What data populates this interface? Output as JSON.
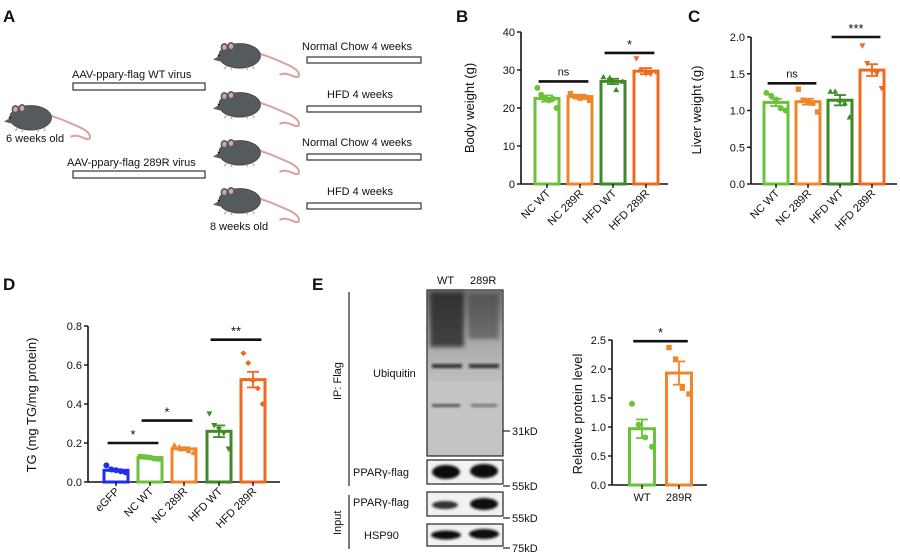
{
  "figure": {
    "panels": {
      "A": {
        "letter": "A",
        "start_label": "6 weeks old",
        "end_label": "8 weeks old",
        "virus_wt": "AAV-ppary-flag WT virus",
        "virus_289r": "AAV-ppary-flag 289R virus",
        "diets": [
          "Normal Chow 4 weeks",
          "HFD 4 weeks",
          "Normal Chow 4 weeks",
          "HFD 4 weeks"
        ]
      },
      "B": {
        "letter": "B"
      },
      "C": {
        "letter": "C"
      },
      "D": {
        "letter": "D"
      },
      "E": {
        "letter": "E",
        "lane_labels": [
          "WT",
          "289R"
        ],
        "ip_label": "IP: Flag",
        "input_label": "Input",
        "blot_labels": [
          "Ubiquitin",
          "PPARγ-flag",
          "PPARγ-flag",
          "HSP90"
        ],
        "markers": [
          "31kD",
          "55kD",
          "55kD",
          "75kD"
        ]
      }
    },
    "colors": {
      "nc_wt": "#6cc23a",
      "nc_289r": "#f0862a",
      "hfd_wt": "#3f8a26",
      "hfd_289r": "#ef6a1e",
      "egfp": "#1f2df0",
      "axis": "#111111"
    }
  },
  "chart_data": [
    {
      "id": "B",
      "type": "bar",
      "title": "",
      "xlabel": "",
      "ylabel": "Body weight (g)",
      "ylim": [
        0,
        40
      ],
      "yticks": [
        0,
        10,
        20,
        30,
        40
      ],
      "categories": [
        "NC WT",
        "NC 289R",
        "HFD WT",
        "HFD 289R"
      ],
      "values": [
        22.5,
        23.0,
        27.0,
        29.7
      ],
      "sem": [
        0.8,
        0.5,
        0.7,
        0.8
      ],
      "points": [
        [
          25.3,
          23.5,
          22.6,
          22.0,
          22.4,
          20.0
        ],
        [
          23.8,
          23.0,
          22.6,
          22.8,
          22.0
        ],
        [
          28.2,
          28.0,
          24.8,
          27.0
        ],
        [
          33.0,
          30.0,
          29.0,
          28.9,
          29.5
        ]
      ],
      "markers": [
        "circle",
        "square",
        "triangle-up",
        "triangle-down"
      ],
      "significance": [
        {
          "from": 0,
          "to": 1,
          "label": "ns",
          "y": 27
        },
        {
          "from": 2,
          "to": 3,
          "label": "*",
          "y": 34.5
        }
      ],
      "grid": false
    },
    {
      "id": "C",
      "type": "bar",
      "title": "",
      "xlabel": "",
      "ylabel": "Liver weight (g)",
      "ylim": [
        0,
        2.0
      ],
      "yticks": [
        "0.0",
        "0.5",
        "1.0",
        "1.5",
        "2.0"
      ],
      "categories": [
        "NC WT",
        "NC 289R",
        "HFD WT",
        "HFD 289R"
      ],
      "values": [
        1.11,
        1.12,
        1.14,
        1.55
      ],
      "sem": [
        0.05,
        0.04,
        0.07,
        0.08
      ],
      "points": [
        [
          1.24,
          1.2,
          1.15,
          1.03,
          1.0
        ],
        [
          1.29,
          1.14,
          1.12,
          1.1,
          0.98
        ],
        [
          1.26,
          1.26,
          1.14,
          1.1,
          0.91
        ],
        [
          1.88,
          1.64,
          1.53,
          1.5,
          1.3
        ]
      ],
      "markers": [
        "circle",
        "square",
        "triangle-up",
        "triangle-down"
      ],
      "significance": [
        {
          "from": 0,
          "to": 1,
          "label": "ns",
          "y": 1.37
        },
        {
          "from": 2,
          "to": 3,
          "label": "***",
          "y": 2.0
        }
      ],
      "grid": false
    },
    {
      "id": "D",
      "type": "bar",
      "title": "",
      "xlabel": "",
      "ylabel": "TG (mg TG/mg protein)",
      "ylim": [
        0,
        0.8
      ],
      "yticks": [
        "0.0",
        "0.2",
        "0.4",
        "0.6",
        "0.8"
      ],
      "categories": [
        "eGFP",
        "NC WT",
        "NC 289R",
        "HFD WT",
        "HFD 289R"
      ],
      "values": [
        0.06,
        0.125,
        0.17,
        0.26,
        0.525
      ],
      "sem": [
        0.005,
        0.004,
        0.008,
        0.03,
        0.04
      ],
      "points": [
        [
          0.085,
          0.065,
          0.06,
          0.055,
          0.05
        ],
        [
          0.13,
          0.128,
          0.125,
          0.12,
          0.118
        ],
        [
          0.19,
          0.18,
          0.17,
          0.16,
          0.15
        ],
        [
          0.35,
          0.29,
          0.27,
          0.25,
          0.17
        ],
        [
          0.66,
          0.61,
          0.52,
          0.48,
          0.4
        ]
      ],
      "markers": [
        "circle",
        "square",
        "triangle-up",
        "triangle-down",
        "diamond"
      ],
      "significance": [
        {
          "from": 0,
          "to": 1,
          "label": "*",
          "y": 0.2
        },
        {
          "from": 1,
          "to": 2,
          "label": "*",
          "y": 0.315
        },
        {
          "from": 3,
          "to": 4,
          "label": "**",
          "y": 0.73
        }
      ],
      "grid": false
    },
    {
      "id": "E",
      "type": "bar",
      "title": "",
      "xlabel": "",
      "ylabel": "Relative protein level",
      "ylim": [
        0,
        2.5
      ],
      "yticks": [
        "0.0",
        "0.5",
        "1.0",
        "1.5",
        "2.0",
        "2.5"
      ],
      "categories": [
        "WT",
        "289R"
      ],
      "values": [
        0.97,
        1.93
      ],
      "sem": [
        0.16,
        0.2
      ],
      "points": [
        [
          1.4,
          1.04,
          0.82,
          0.66
        ],
        [
          2.37,
          2.17,
          1.67,
          1.57
        ]
      ],
      "markers": [
        "circle",
        "square"
      ],
      "significance": [
        {
          "from": 0,
          "to": 1,
          "label": "*",
          "y": 2.48
        }
      ],
      "grid": false
    }
  ]
}
